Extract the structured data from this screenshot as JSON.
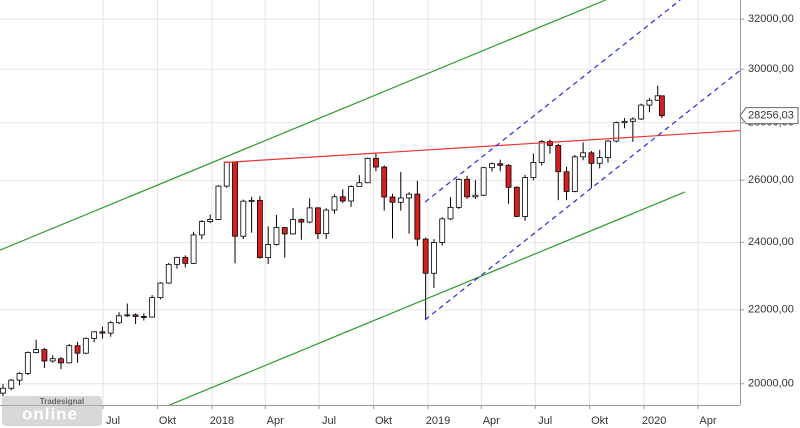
{
  "chart_data": {
    "type": "candlestick",
    "log_scale": true,
    "grid": true,
    "ylim": [
      19460,
      32800
    ],
    "yticks": [
      {
        "value": 20000,
        "label": "20000,00"
      },
      {
        "value": 22000,
        "label": "22000,00"
      },
      {
        "value": 24000,
        "label": "24000,00"
      },
      {
        "value": 26000,
        "label": "26000,00"
      },
      {
        "value": 28000,
        "label": "28000,00"
      },
      {
        "value": 30000,
        "label": "30000,00"
      },
      {
        "value": 32000,
        "label": "32000,00"
      }
    ],
    "xlim": [
      "2017-01-08",
      "2020-06-11"
    ],
    "xticks": [
      {
        "value": "2017-07-01",
        "label": "Jul"
      },
      {
        "value": "2017-10-01",
        "label": "Okt"
      },
      {
        "value": "2018-01-01",
        "label": "2018"
      },
      {
        "value": "2018-04-01",
        "label": "Apr"
      },
      {
        "value": "2018-07-01",
        "label": "Jul"
      },
      {
        "value": "2018-10-01",
        "label": "Okt"
      },
      {
        "value": "2019-01-01",
        "label": "2019"
      },
      {
        "value": "2019-04-01",
        "label": "Apr"
      },
      {
        "value": "2019-07-01",
        "label": "Jul"
      },
      {
        "value": "2019-10-01",
        "label": "Okt"
      },
      {
        "value": "2020-01-01",
        "label": "2020"
      },
      {
        "value": "2020-04-01",
        "label": "Apr"
      }
    ],
    "up_color": "#ffffff",
    "down_color": "#d42020",
    "x": [
      "2017-01-13",
      "2017-01-27",
      "2017-02-10",
      "2017-02-24",
      "2017-03-10",
      "2017-03-24",
      "2017-04-07",
      "2017-04-21",
      "2017-05-05",
      "2017-05-19",
      "2017-06-02",
      "2017-06-16",
      "2017-06-30",
      "2017-07-14",
      "2017-07-28",
      "2017-08-11",
      "2017-08-25",
      "2017-09-08",
      "2017-09-22",
      "2017-10-06",
      "2017-10-20",
      "2017-11-03",
      "2017-11-17",
      "2017-12-01",
      "2017-12-15",
      "2017-12-29",
      "2018-01-12",
      "2018-01-26",
      "2018-02-09",
      "2018-02-23",
      "2018-03-09",
      "2018-03-23",
      "2018-04-06",
      "2018-04-20",
      "2018-05-04",
      "2018-05-18",
      "2018-06-01",
      "2018-06-15",
      "2018-06-29",
      "2018-07-13",
      "2018-07-27",
      "2018-08-10",
      "2018-08-24",
      "2018-09-07",
      "2018-09-21",
      "2018-10-05",
      "2018-10-19",
      "2018-11-02",
      "2018-11-16",
      "2018-11-30",
      "2018-12-14",
      "2018-12-28",
      "2019-01-11",
      "2019-01-25",
      "2019-02-08",
      "2019-02-22",
      "2019-03-08",
      "2019-03-22",
      "2019-04-05",
      "2019-04-19",
      "2019-05-03",
      "2019-05-17",
      "2019-05-31",
      "2019-06-14",
      "2019-06-28",
      "2019-07-12",
      "2019-07-26",
      "2019-08-09",
      "2019-08-23",
      "2019-09-06",
      "2019-09-20",
      "2019-10-04",
      "2019-10-18",
      "2019-11-01",
      "2019-11-15",
      "2019-11-29",
      "2019-12-13",
      "2019-12-27",
      "2020-01-10",
      "2020-01-24",
      "2020-01-31"
    ],
    "open": [
      19760,
      19885,
      20094,
      20269,
      20822,
      20902,
      20596,
      20656,
      20547,
      21006,
      20804,
      21206,
      21384,
      21349,
      21637,
      21830,
      21858,
      21813,
      21797,
      22349,
      22773,
      23328,
      23539,
      23358,
      24231,
      24651,
      24719,
      25803,
      26616,
      24190,
      25309,
      25335,
      23533,
      23933,
      24462,
      24262,
      24715,
      24635,
      25090,
      24271,
      25019,
      25451,
      25313,
      25790,
      25916,
      26743,
      26447,
      25444,
      25271,
      25413,
      25538,
      24100,
      23062,
      23996,
      24737,
      25106,
      26031,
      25450,
      25502,
      26424,
      26559,
      26505,
      25764,
      24815,
      26089,
      26600,
      27332,
      27192,
      26287,
      25628,
      26797,
      26935,
      26573,
      26770,
      27347,
      28004,
      28051,
      28135,
      28645,
      28823,
      28990
    ],
    "high": [
      19990,
      20125,
      20300,
      20850,
      21169,
      20950,
      20750,
      20700,
      21050,
      21110,
      21230,
      21400,
      21530,
      21680,
      21930,
      22180,
      21900,
      21900,
      22420,
      22800,
      23370,
      23560,
      23600,
      24330,
      24700,
      24880,
      25830,
      26620,
      26640,
      25360,
      25450,
      25470,
      24500,
      24860,
      24480,
      25090,
      24750,
      25400,
      25110,
      25080,
      25530,
      25700,
      25830,
      26170,
      26770,
      26950,
      26500,
      25550,
      26280,
      25600,
      25980,
      24150,
      24100,
      24790,
      25440,
      26060,
      26150,
      26000,
      26450,
      26600,
      26700,
      26550,
      25800,
      26180,
      26910,
      27380,
      27400,
      27250,
      26450,
      26860,
      27300,
      27000,
      27040,
      27380,
      28040,
      28170,
      28200,
      28700,
      28900,
      29370,
      29000
    ],
    "low": [
      19680,
      19830,
      19960,
      20230,
      20800,
      20410,
      20550,
      20380,
      20530,
      20550,
      20780,
      21100,
      21200,
      21250,
      21600,
      21800,
      21600,
      21700,
      21780,
      22300,
      22750,
      23200,
      23240,
      23340,
      24100,
      24600,
      24700,
      25750,
      23360,
      24100,
      24300,
      23500,
      23340,
      23900,
      23530,
      24250,
      24080,
      24600,
      24100,
      24100,
      24900,
      25250,
      25120,
      25800,
      25900,
      26300,
      25000,
      24120,
      25000,
      24270,
      23880,
      21710,
      22630,
      23900,
      24700,
      25050,
      25380,
      25380,
      25480,
      26300,
      26300,
      25220,
      24800,
      24680,
      26000,
      26500,
      26900,
      25340,
      25340,
      25600,
      26680,
      25740,
      26400,
      26600,
      27300,
      27800,
      27320,
      28100,
      28380,
      28800,
      28170
    ],
    "close": [
      19885,
      20094,
      20269,
      20822,
      20902,
      20596,
      20656,
      20547,
      21006,
      20804,
      21206,
      21384,
      21349,
      21637,
      21830,
      21858,
      21813,
      21797,
      22349,
      22773,
      23328,
      23539,
      23358,
      24231,
      24651,
      24719,
      25803,
      26616,
      24190,
      25309,
      25335,
      23533,
      23933,
      24462,
      24262,
      24715,
      24635,
      25090,
      24271,
      25019,
      25451,
      25313,
      25790,
      25916,
      26743,
      26447,
      25444,
      25271,
      25413,
      25538,
      24100,
      23062,
      23996,
      24737,
      25106,
      26031,
      25450,
      25502,
      26424,
      26559,
      26505,
      25764,
      24815,
      26089,
      26600,
      27332,
      27192,
      26287,
      25628,
      26797,
      26935,
      26573,
      26770,
      27347,
      28004,
      28051,
      28135,
      28645,
      28823,
      28990,
      28256.03
    ],
    "last_price": {
      "value": 28256.03,
      "label": "28256,03"
    },
    "lines": [
      {
        "color": "#2e9a2e",
        "dash": false,
        "x": [
          "2017-01-08",
          "2019-10-28"
        ],
        "values": [
          23760,
          32800
        ]
      },
      {
        "color": "#2e9a2e",
        "dash": false,
        "x": [
          "2017-10-02",
          "2020-03-10"
        ],
        "values": [
          19340,
          25610
        ]
      },
      {
        "color": "#ee3333",
        "dash": false,
        "x": [
          "2018-01-21",
          "2020-06-11"
        ],
        "values": [
          26600,
          27720
        ]
      },
      {
        "color": "#2b2bdd",
        "dash": true,
        "x": [
          "2018-12-27",
          "2020-03-02"
        ],
        "values": [
          25280,
          32800
        ]
      },
      {
        "color": "#2b2bdd",
        "dash": true,
        "x": [
          "2018-12-27",
          "2020-06-11"
        ],
        "values": [
          21720,
          29950
        ]
      }
    ],
    "logo": {
      "small": "Tradesignal",
      "large": "online"
    }
  }
}
